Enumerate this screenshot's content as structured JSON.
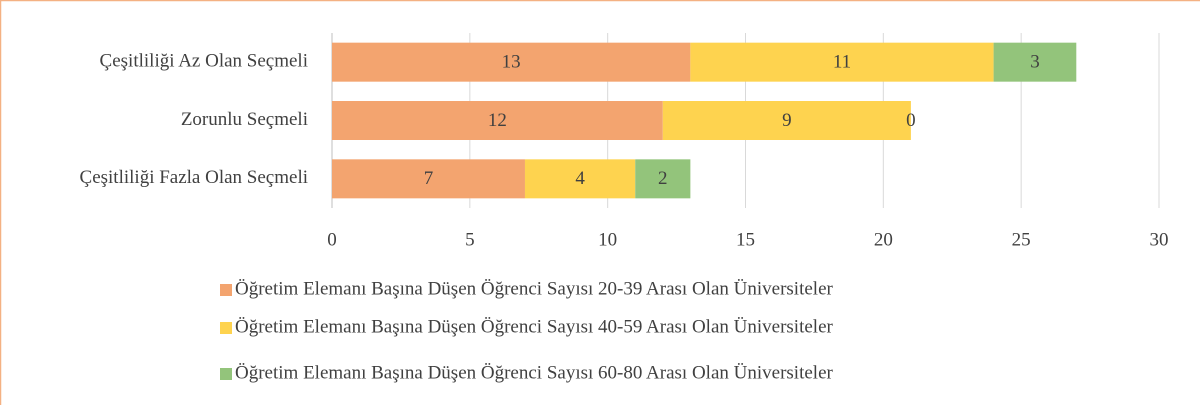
{
  "chart_data": {
    "type": "stacked_barh",
    "categories": [
      "Çeşitliliği Az Olan Seçmeli",
      "Zorunlu Seçmeli",
      "Çeşitliliği Fazla Olan Seçmeli"
    ],
    "series": [
      {
        "name": "Öğretim Elemanı Başına Düşen Öğrenci Sayısı 20-39 Arası Olan Üniversiteler",
        "color": "#f3a46f",
        "values": [
          13,
          12,
          7
        ]
      },
      {
        "name": "Öğretim Elemanı Başına Düşen Öğrenci Sayısı 40-59 Arası Olan Üniversiteler",
        "color": "#fed34f",
        "values": [
          11,
          9,
          4
        ]
      },
      {
        "name": "Öğretim Elemanı Başına Düşen Öğrenci Sayısı 60-80 Arası Olan Üniversiteler",
        "color": "#93c47b",
        "values": [
          3,
          0,
          2
        ]
      }
    ],
    "xlim": [
      0,
      30
    ],
    "xticks": [
      0,
      5,
      10,
      15,
      20,
      25,
      30
    ],
    "grid": true,
    "legend": "bottom"
  }
}
